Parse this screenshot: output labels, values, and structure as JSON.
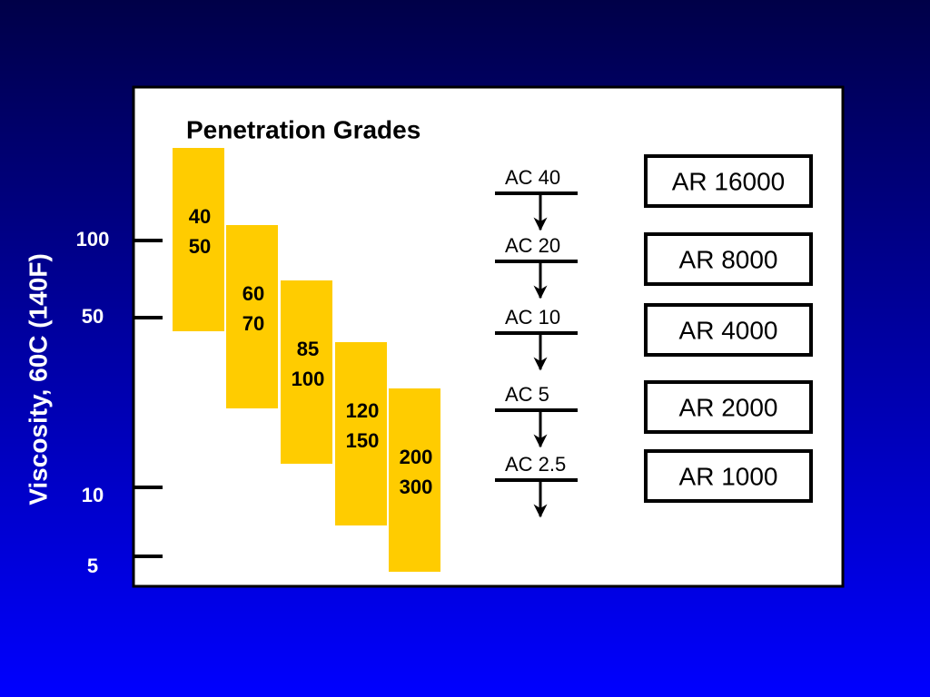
{
  "title": "Penetration Grades",
  "y_axis": {
    "label": "Viscosity, 60C (140F)",
    "ticks": [
      "100",
      "50",
      "10",
      "5"
    ]
  },
  "penetration_grades": [
    [
      "40",
      "50"
    ],
    [
      "60",
      "70"
    ],
    [
      "85",
      "100"
    ],
    [
      "120",
      "150"
    ],
    [
      "200",
      "300"
    ]
  ],
  "ac_grades": [
    "AC 40",
    "AC 20",
    "AC 10",
    "AC 5",
    "AC 2.5"
  ],
  "ar_grades": [
    "AR 16000",
    "AR 8000",
    "AR 4000",
    "AR 2000",
    "AR 1000"
  ]
}
